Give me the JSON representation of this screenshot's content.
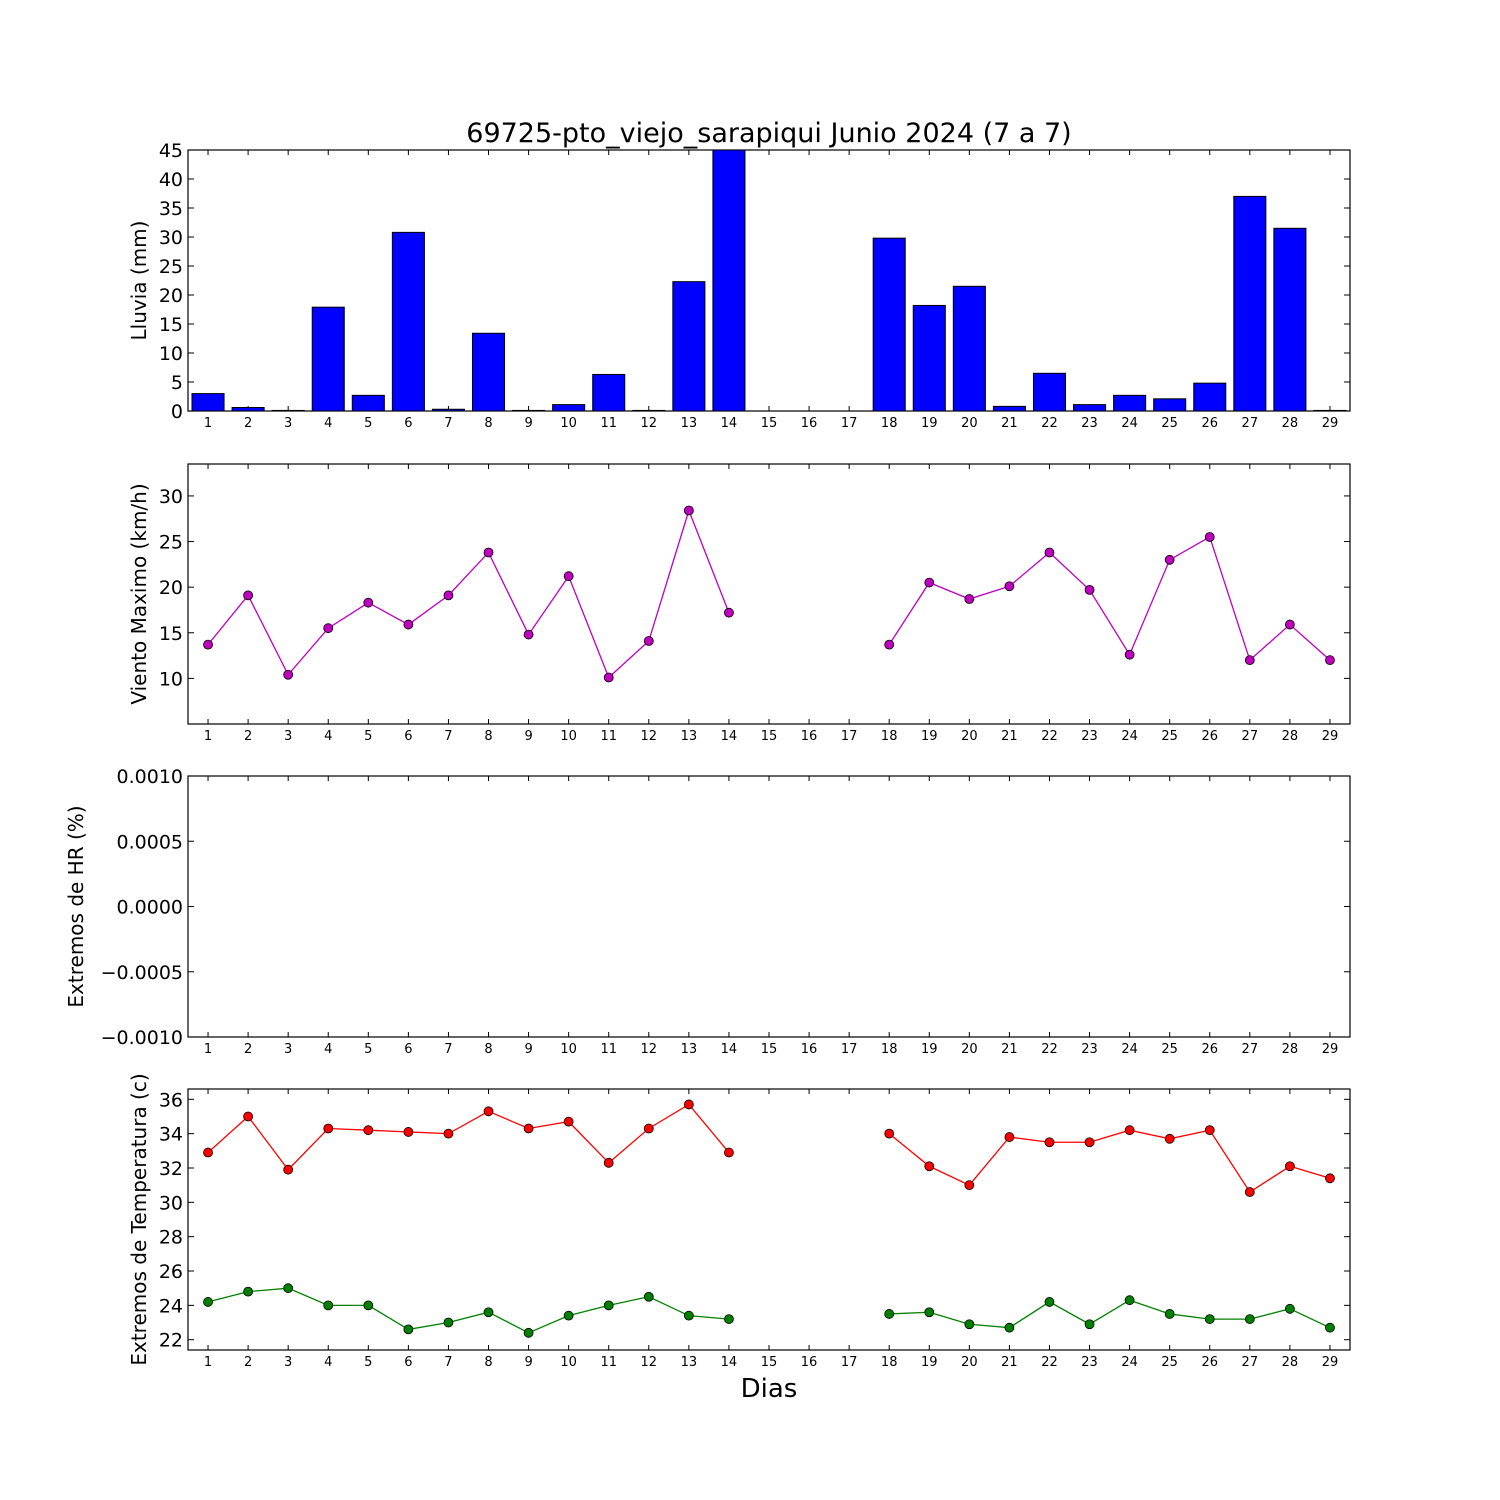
{
  "figure": {
    "title": "69725-pto_viejo_sarapiqui Junio 2024  (7 a 7)",
    "xlabel": "Dias"
  },
  "chart_data": [
    {
      "type": "bar",
      "ylabel": "Lluvia (mm)",
      "ylim": [
        0,
        45
      ],
      "yticks": [
        "0",
        "5",
        "10",
        "15",
        "20",
        "25",
        "30",
        "35",
        "40",
        "45"
      ],
      "categories": [
        "1",
        "2",
        "3",
        "4",
        "5",
        "6",
        "7",
        "8",
        "9",
        "10",
        "11",
        "12",
        "13",
        "14",
        "15",
        "16",
        "17",
        "18",
        "19",
        "20",
        "21",
        "22",
        "23",
        "24",
        "25",
        "26",
        "27",
        "28",
        "29"
      ],
      "values": [
        3.0,
        0.6,
        0.1,
        17.9,
        2.7,
        30.8,
        0.3,
        13.4,
        0.1,
        1.1,
        6.3,
        0.1,
        22.3,
        45.0,
        null,
        null,
        null,
        29.8,
        18.2,
        21.5,
        0.8,
        6.5,
        1.1,
        2.7,
        2.1,
        4.8,
        37.0,
        31.5,
        0.1
      ],
      "colors": {
        "bar": "#0000ff"
      }
    },
    {
      "type": "line",
      "ylabel": "Viento Maximo (km/h)",
      "ylim": [
        5,
        33.5
      ],
      "yticks": [
        "10",
        "15",
        "20",
        "25",
        "30"
      ],
      "categories": [
        "1",
        "2",
        "3",
        "4",
        "5",
        "6",
        "7",
        "8",
        "9",
        "10",
        "11",
        "12",
        "13",
        "14",
        "15",
        "16",
        "17",
        "18",
        "19",
        "20",
        "21",
        "22",
        "23",
        "24",
        "25",
        "26",
        "27",
        "28",
        "29"
      ],
      "series": [
        {
          "values": [
            13.7,
            19.1,
            10.4,
            15.5,
            18.3,
            15.9,
            19.1,
            23.8,
            14.8,
            21.2,
            10.1,
            14.1,
            28.4,
            17.2,
            null,
            null,
            null,
            13.7,
            20.5,
            18.7,
            20.1,
            23.8,
            19.7,
            12.6,
            23.0,
            25.5,
            12.0,
            15.9,
            12.0
          ],
          "color": "#bf00bf"
        }
      ]
    },
    {
      "type": "line",
      "ylabel": "Extremos de HR (%)",
      "ylim": [
        -0.001,
        0.001
      ],
      "yticks": [
        "−0.0010",
        "−0.0005",
        "0.0000",
        "0.0005",
        "0.0010"
      ],
      "categories": [
        "1",
        "2",
        "3",
        "4",
        "5",
        "6",
        "7",
        "8",
        "9",
        "10",
        "11",
        "12",
        "13",
        "14",
        "15",
        "16",
        "17",
        "18",
        "19",
        "20",
        "21",
        "22",
        "23",
        "24",
        "25",
        "26",
        "27",
        "28",
        "29"
      ],
      "series": []
    },
    {
      "type": "line",
      "ylabel": "Extremos de Temperatura (c)",
      "ylim": [
        21.4,
        36.6
      ],
      "yticks": [
        "22",
        "24",
        "26",
        "28",
        "30",
        "32",
        "34",
        "36"
      ],
      "categories": [
        "1",
        "2",
        "3",
        "4",
        "5",
        "6",
        "7",
        "8",
        "9",
        "10",
        "11",
        "12",
        "13",
        "14",
        "15",
        "16",
        "17",
        "18",
        "19",
        "20",
        "21",
        "22",
        "23",
        "24",
        "25",
        "26",
        "27",
        "28",
        "29"
      ],
      "series": [
        {
          "values": [
            32.9,
            35.0,
            31.9,
            34.3,
            34.2,
            34.1,
            34.0,
            35.3,
            34.3,
            34.7,
            32.3,
            34.3,
            35.7,
            32.9,
            null,
            null,
            null,
            34.0,
            32.1,
            31.0,
            33.8,
            33.5,
            33.5,
            34.2,
            33.7,
            34.2,
            30.6,
            32.1,
            31.4
          ],
          "color": "#ff0000"
        },
        {
          "values": [
            24.2,
            24.8,
            25.0,
            24.0,
            24.0,
            22.6,
            23.0,
            23.6,
            22.4,
            23.4,
            24.0,
            24.5,
            23.4,
            23.2,
            null,
            null,
            null,
            23.5,
            23.6,
            22.9,
            22.7,
            24.2,
            22.9,
            24.3,
            23.5,
            23.2,
            23.2,
            23.8,
            22.7
          ],
          "color": "#008000"
        }
      ]
    }
  ]
}
